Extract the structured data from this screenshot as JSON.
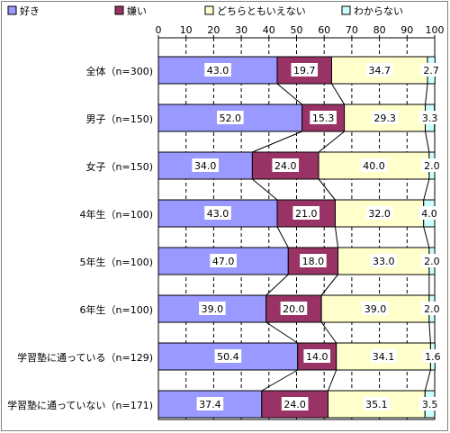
{
  "chart_data": {
    "type": "bar",
    "stacked": true,
    "orientation": "horizontal",
    "percent": true,
    "categories": [
      "全体（n=300)",
      "男子（n=150)",
      "女子（n=150)",
      "4年生（n=100)",
      "5年生（n=100)",
      "6年生（n=100)",
      "学習塾に通っている（n=129)",
      "学習塾に通っていない（n=171)"
    ],
    "series": [
      {
        "name": "好き",
        "color": "#9999ff",
        "values": [
          43.0,
          52.0,
          34.0,
          43.0,
          47.0,
          39.0,
          50.4,
          37.4
        ]
      },
      {
        "name": "嫌い",
        "color": "#993366",
        "values": [
          19.7,
          15.3,
          24.0,
          21.0,
          18.0,
          20.0,
          14.0,
          24.0
        ]
      },
      {
        "name": "どちらともいえない",
        "color": "#ffffcc",
        "values": [
          34.7,
          29.3,
          40.0,
          32.0,
          33.0,
          39.0,
          34.1,
          35.1
        ]
      },
      {
        "name": "わからない",
        "color": "#ccffff",
        "values": [
          2.7,
          3.3,
          2.0,
          4.0,
          2.0,
          2.0,
          1.6,
          3.5
        ]
      }
    ],
    "value_labels": [
      [
        "43.0",
        "52.0",
        "34.0",
        "43.0",
        "47.0",
        "39.0",
        "50.4",
        "37.4"
      ],
      [
        "19.7",
        "15.3",
        "24.0",
        "21.0",
        "18.0",
        "20.0",
        "14.0",
        "24.0"
      ],
      [
        "34.7",
        "29.3",
        "40.0",
        "32.0",
        "33.0",
        "39.0",
        "34.1",
        "35.1"
      ],
      [
        "2.7",
        "3.3",
        "2.0",
        "4.0",
        "2.0",
        "2.0",
        "1.6",
        "3.5"
      ]
    ],
    "xlim": [
      0,
      100
    ],
    "xticks": [
      0,
      10,
      20,
      30,
      40,
      50,
      60,
      70,
      80,
      90,
      100
    ],
    "xtick_labels": [
      "0",
      "10",
      "20",
      "30",
      "40",
      "50",
      "60",
      "70",
      "80",
      "90",
      "100"
    ],
    "grid": "vertical dashed",
    "series_lines": true,
    "legend_position": "top"
  }
}
